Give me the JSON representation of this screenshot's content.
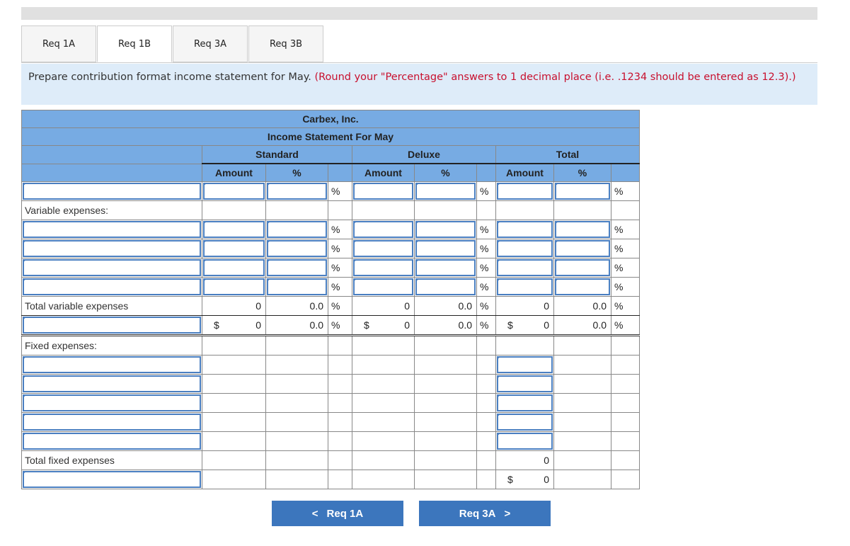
{
  "tabs": [
    "Req 1A",
    "Req 1B",
    "Req 3A",
    "Req 3B"
  ],
  "active_tab": 1,
  "instruction": {
    "text": "Prepare contribution format income statement for May.",
    "note": "(Round your \"Percentage\" answers to 1 decimal place (i.e. .1234 should be entered as 12.3).)"
  },
  "statement": {
    "company": "Carbex, Inc.",
    "title": "Income Statement For May",
    "groups": [
      "Standard",
      "Deluxe",
      "Total"
    ],
    "amount_header": "Amount",
    "pct_header": "%",
    "pct_symbol": "%",
    "dollar": "$",
    "rows": [
      {
        "type": "input"
      },
      {
        "type": "label",
        "label": "Variable expenses:"
      },
      {
        "type": "input"
      },
      {
        "type": "input"
      },
      {
        "type": "input"
      },
      {
        "type": "input"
      },
      {
        "type": "total",
        "label": "Total variable expenses",
        "values": [
          "0",
          "0.0",
          "0",
          "0.0",
          "0",
          "0.0"
        ]
      },
      {
        "type": "cm",
        "values": [
          "0",
          "0.0",
          "0",
          "0.0",
          "0",
          "0.0"
        ]
      },
      {
        "type": "label",
        "label": "Fixed expenses:"
      },
      {
        "type": "fixed"
      },
      {
        "type": "fixed"
      },
      {
        "type": "fixed"
      },
      {
        "type": "fixed"
      },
      {
        "type": "fixed"
      },
      {
        "type": "ftotal",
        "label": "Total fixed expenses",
        "values": [
          "0"
        ]
      },
      {
        "type": "noi",
        "values": [
          "0"
        ]
      }
    ]
  },
  "nav": {
    "prev": "Req 1A",
    "next": "Req 3A"
  },
  "colors": {
    "header": "#77abe3",
    "button": "#3c76bd",
    "instruction_bg": "#deecf9",
    "note": "#c8102e"
  }
}
